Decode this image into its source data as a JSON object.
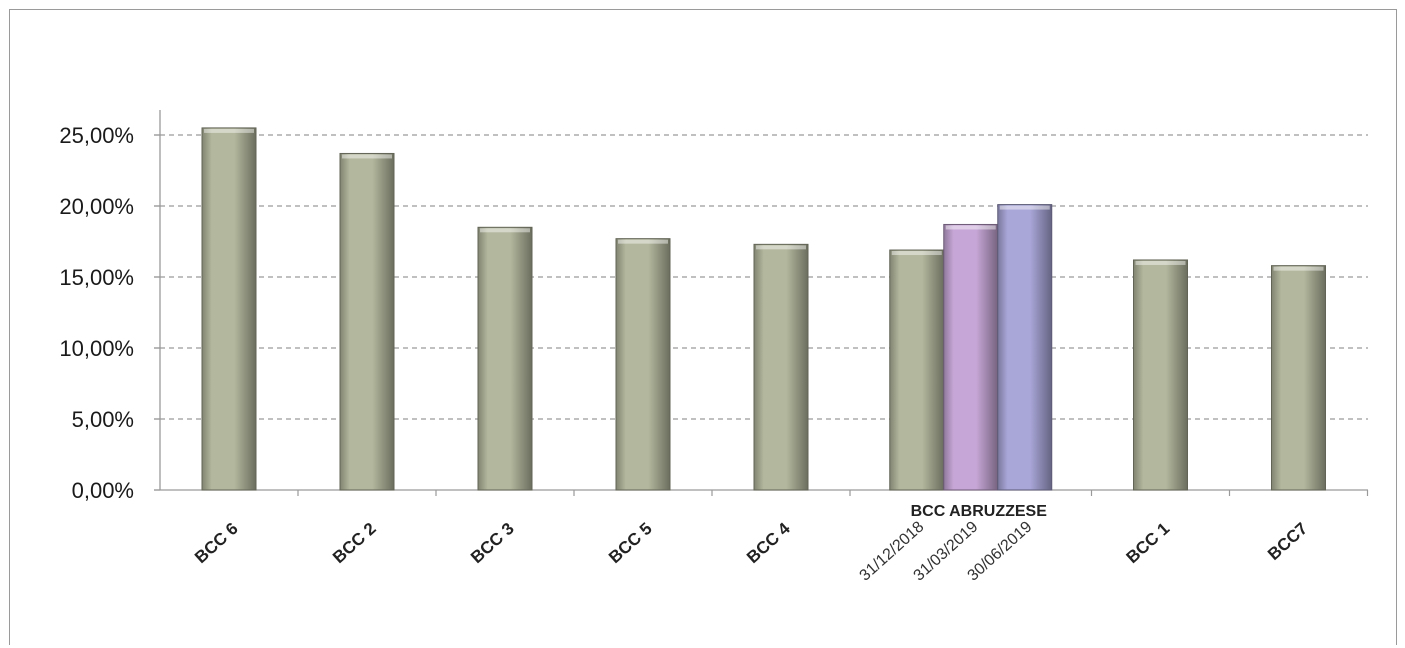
{
  "chart_data": {
    "type": "bar",
    "title": "",
    "xlabel": "",
    "ylabel": "",
    "ylim": [
      0,
      0.25
    ],
    "y_ticks": [
      "0,00%",
      "5,00%",
      "10,00%",
      "15,00%",
      "20,00%",
      "25,00%"
    ],
    "grid": true,
    "legend": "none",
    "categories": [
      {
        "label": "BCC 6",
        "bars": [
          {
            "value": 0.255,
            "color": "#b3b79d"
          }
        ]
      },
      {
        "label": "BCC 2",
        "bars": [
          {
            "value": 0.237,
            "color": "#b3b79d"
          }
        ]
      },
      {
        "label": "BCC 3",
        "bars": [
          {
            "value": 0.185,
            "color": "#b3b79d"
          }
        ]
      },
      {
        "label": "BCC 5",
        "bars": [
          {
            "value": 0.177,
            "color": "#b3b79d"
          }
        ]
      },
      {
        "label": "BCC 4",
        "bars": [
          {
            "value": 0.173,
            "color": "#b3b79d"
          }
        ]
      },
      {
        "label": "BCC ABRUZZESE",
        "grouped": true,
        "bars": [
          {
            "label": "31/12/2018",
            "value": 0.169,
            "color": "#b3b79d"
          },
          {
            "label": "31/03/2019",
            "value": 0.187,
            "color": "#c6a6d6"
          },
          {
            "label": "30/06/2019",
            "value": 0.201,
            "color": "#a9a6d8"
          }
        ]
      },
      {
        "label": "BCC 1",
        "bars": [
          {
            "value": 0.162,
            "color": "#b3b79d"
          }
        ]
      },
      {
        "label": "BCC7",
        "bars": [
          {
            "value": 0.158,
            "color": "#b3b79d"
          }
        ]
      }
    ]
  }
}
